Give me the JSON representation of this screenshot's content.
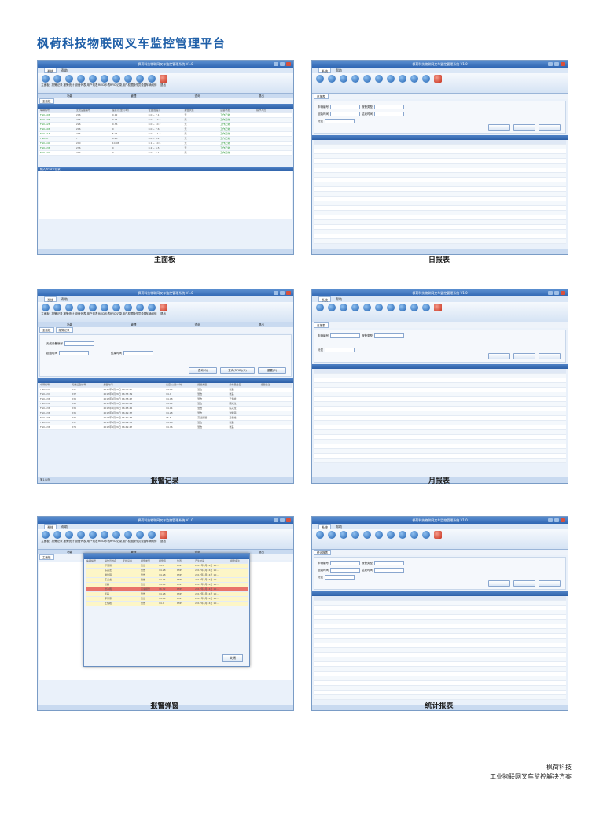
{
  "page_title": "枫荷科技物联网叉车监控管理平台",
  "screenshots": [
    {
      "caption": "主面板",
      "window_title": "枫荷科技物联网叉车监控管理系统 V1.0",
      "menu": [
        "系统",
        "帮助"
      ]
    },
    {
      "caption": "日报表",
      "window_title": "枫荷科技物联网叉车监控管理系统 V1.0",
      "menu": [
        "系统",
        "帮助"
      ]
    },
    {
      "caption": "报警记录",
      "window_title": "枫荷科技物联网叉车监控管理系统 V1.0",
      "menu": [
        "系统",
        "帮助"
      ]
    },
    {
      "caption": "月报表",
      "window_title": "枫荷科技物联网叉车监控管理系统 V1.0",
      "menu": [
        "系统",
        "帮助"
      ]
    },
    {
      "caption": "报警弹窗",
      "window_title": "枫荷科技物联网叉车监控管理系统 V1.0",
      "menu": [
        "系统",
        "帮助"
      ]
    },
    {
      "caption": "统计报表",
      "window_title": "枫荷科技物联网叉车监控管理系统 V1.0",
      "menu": [
        "系统",
        "帮助"
      ]
    }
  ],
  "ribbon": [
    "主面板",
    "报警记录",
    "报警统计",
    "设备列表",
    "用户列表",
    "RFID卡表",
    "RFID记录",
    "用户权限",
    "操作员设置",
    "车辆维修",
    "退出"
  ],
  "groups": [
    "功能",
    "管理",
    "查询",
    "退出"
  ],
  "main_panel": {
    "headers": [
      "车辆编号",
      "无线设备编号",
      "速度(公里/小时)",
      "位置(经度)",
      "报警状态",
      "设备状态",
      "操作人员"
    ],
    "status_text": "工作正常",
    "lower_panel": "输入RFID卡记录"
  },
  "alarm_record": {
    "headers": [
      "车辆编号",
      "无线设备编号",
      "报警时间",
      "速度(公里/小时)",
      "报警类型",
      "操作员姓名",
      "报警备注"
    ],
    "rows": [
      [
        "FN0-137",
        "237",
        "2017年4月26日 16:33:27",
        "14.04",
        "警告",
        "张磊"
      ],
      [
        "FN0-137",
        "237",
        "2017年4月26日 16:33:39",
        "14.4",
        "警告",
        "张磊"
      ],
      [
        "FN0-136",
        "236",
        "2017年4月26日 16:38:47",
        "14.08",
        "警告",
        "王恒峰"
      ],
      [
        "FN0-136",
        "240",
        "2017年4月26日 16:48:44",
        "14.04",
        "警告",
        "陈兴龙"
      ],
      [
        "FN0-136",
        "236",
        "2017年4月26日 16:48:42",
        "14.04",
        "警告",
        "陈兴龙"
      ],
      [
        "FN0-136",
        "235",
        "2017年4月26日 16:49:37",
        "14.28",
        "警告",
        "谢俊强"
      ],
      [
        "FN0-136",
        "236",
        "2017年4月26日 16:49:37",
        "15.6",
        "高速报警",
        "王恒峰"
      ],
      [
        "FN0-137",
        "237",
        "2017年4月26日 16:49:32",
        "14.16",
        "警告",
        "张磊"
      ],
      [
        "FN0-136",
        "276",
        "2017年4月26日 16:49:47",
        "14.76",
        "警告",
        "张磊"
      ]
    ],
    "form_labels": [
      "无线设备编号",
      "起始时间",
      "结束时间"
    ],
    "buttons": [
      "查询(Q)",
      "查询(RFID)(Q)",
      "重置(C)"
    ],
    "footer": "第1/1页"
  },
  "popup": {
    "headers": [
      "车辆编号",
      "操作员姓名",
      "无线设备",
      "报警类型",
      "报警值",
      "位置",
      "产生时间",
      "报警备注"
    ],
    "rows": [
      [
        "下港侧",
        "警告",
        "14.4",
        "KMH",
        "2017年4月24日 15:..."
      ],
      [
        "陈兴龙",
        "警告",
        "14.28",
        "KMH",
        "2017年4月24日 15:..."
      ],
      [
        "谢俊强",
        "警告",
        "14.28",
        "KMH",
        "2017年4月24日 15:..."
      ],
      [
        "陈兴龙",
        "警告",
        "14.04",
        "KMH",
        "2017年4月24日 15:..."
      ],
      [
        "张磊",
        "警告",
        "14.04",
        "KMH",
        "2017年4月24日 15:..."
      ],
      [
        "张冰雨",
        "高速报警",
        "16.32",
        "KMH",
        "2017年4月24日 15:..."
      ],
      [
        "姜磊",
        "警告",
        "14.28",
        "KMH",
        "2017年4月24日 15:..."
      ],
      [
        "李东东",
        "警告",
        "14.04",
        "KMH",
        "2017年4月24日 15:..."
      ],
      [
        "王恒峰",
        "警告",
        "14.4",
        "KMH",
        "2017年4月24日 15:..."
      ]
    ],
    "ok": "关闭"
  },
  "report_form_labels": [
    "车辆编号",
    "报警类型",
    "起始时间",
    "结束时间",
    "分类"
  ],
  "footer_company": "枫荷科技",
  "footer_solution": "工业物联网叉车监控解决方案"
}
